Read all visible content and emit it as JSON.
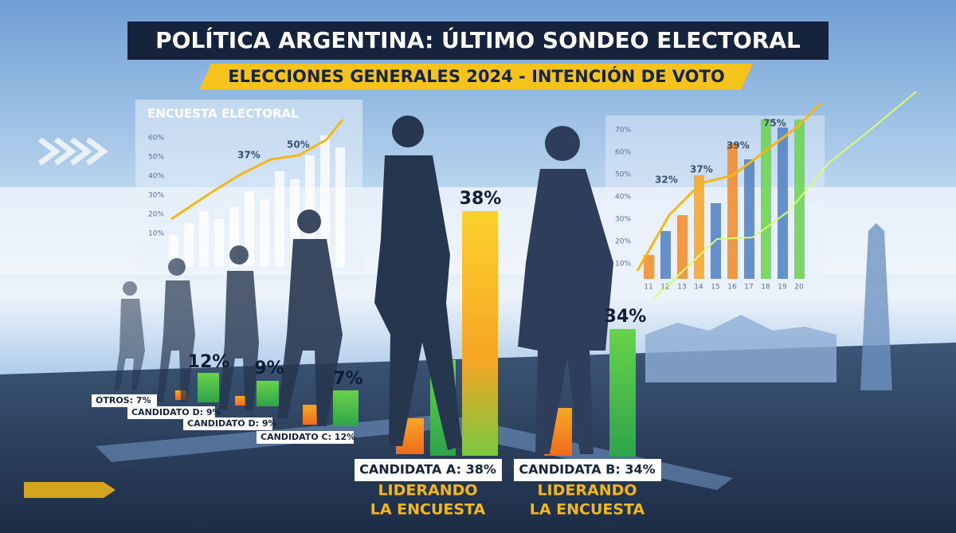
{
  "header": {
    "title": "POLÍTICA ARGENTINA: ÚLTIMO SONDEO ELECTORAL",
    "subtitle": "ELECCIONES GENERALES 2024 - INTENCIÓN DE VOTO"
  },
  "left_panel": {
    "title": "ENCUESTA ELECTORAL",
    "yticks": [
      "60%",
      "50%",
      "40%",
      "30%",
      "20%",
      "10%"
    ],
    "notes": [
      "37%",
      "50%"
    ]
  },
  "right_panel": {
    "yticks": [
      "70%",
      "60%",
      "50%",
      "40%",
      "30%",
      "20%",
      "10%"
    ],
    "xticks": [
      "11",
      "12",
      "13",
      "14",
      "15",
      "16",
      "17",
      "18",
      "19",
      "20"
    ],
    "notes": [
      "32%",
      "37%",
      "39%",
      "75%"
    ]
  },
  "bar_labels": [
    "12%",
    "9%",
    "7%",
    "38%",
    "34%"
  ],
  "candidates": [
    "OTROS: 7%",
    "CANDIDATO D: 9%",
    "CANDIDATO D: 9%",
    "CANDIDATO C: 12%",
    "CANDIDATA A: 38%",
    "CANDIDATA B: 34%"
  ],
  "leading": [
    [
      "LIDERANDO",
      "LA ENCUESTA"
    ],
    [
      "LIDERANDO",
      "LA ENCUESTA"
    ]
  ]
}
